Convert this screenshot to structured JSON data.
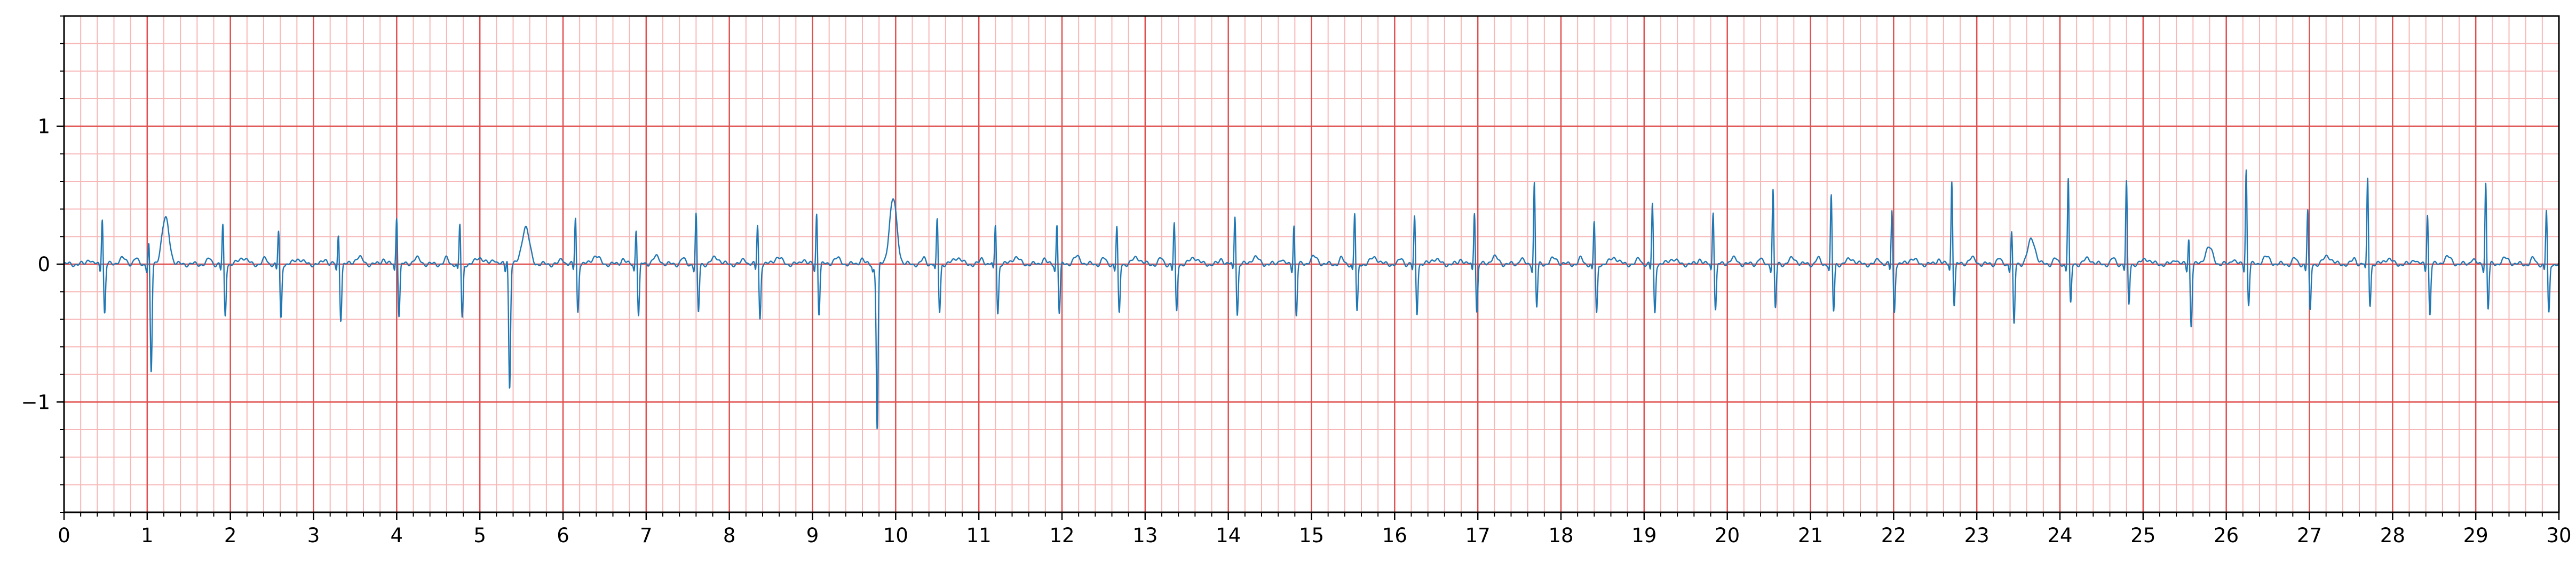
{
  "chart_data": {
    "type": "line",
    "title": "",
    "xlabel": "",
    "ylabel": "",
    "xlim": [
      0,
      30
    ],
    "ylim": [
      -1.8,
      1.8
    ],
    "grid": {
      "major_x": 1,
      "minor_x": 0.2,
      "major_y": 1,
      "minor_y": 0.2,
      "on": true
    },
    "x_ticks": [
      0,
      1,
      2,
      3,
      4,
      5,
      6,
      7,
      8,
      9,
      10,
      11,
      12,
      13,
      14,
      15,
      16,
      17,
      18,
      19,
      20,
      21,
      22,
      23,
      24,
      25,
      26,
      27,
      28,
      29,
      30
    ],
    "x_tick_labels": [
      "0",
      "1",
      "2",
      "3",
      "4",
      "5",
      "6",
      "7",
      "8",
      "9",
      "10",
      "11",
      "12",
      "13",
      "14",
      "15",
      "16",
      "17",
      "18",
      "19",
      "20",
      "21",
      "22",
      "23",
      "24",
      "25",
      "26",
      "27",
      "28",
      "29",
      "30"
    ],
    "y_ticks": [
      -1,
      0,
      1
    ],
    "y_tick_labels": [
      "−1",
      "0",
      "1"
    ],
    "series": [
      {
        "color": "#1f77b4",
        "beats": [
          {
            "t": 0.46,
            "r": 0.35,
            "s": -0.36,
            "tw": 0.04
          },
          {
            "t": 1.02,
            "r": 0.17,
            "s": -0.8,
            "tw": 0.33,
            "tt": 0.2
          },
          {
            "t": 1.91,
            "r": 0.29,
            "s": -0.38,
            "tw": 0.05
          },
          {
            "t": 2.58,
            "r": 0.25,
            "s": -0.4,
            "tw": 0.04
          },
          {
            "t": 3.3,
            "r": 0.22,
            "s": -0.4,
            "tw": 0.05
          },
          {
            "t": 4.0,
            "r": 0.36,
            "s": -0.38,
            "tw": 0.04
          },
          {
            "t": 4.76,
            "r": 0.3,
            "s": -0.4,
            "tw": 0.05
          },
          {
            "t": 5.33,
            "r": 0.05,
            "s": -0.9,
            "tw": 0.27,
            "tt": 0.22
          },
          {
            "t": 6.15,
            "r": 0.35,
            "s": -0.35,
            "tw": 0.06
          },
          {
            "t": 6.88,
            "r": 0.27,
            "s": -0.38,
            "tw": 0.05
          },
          {
            "t": 7.6,
            "r": 0.37,
            "s": -0.36,
            "tw": 0.05
          },
          {
            "t": 8.34,
            "r": 0.3,
            "s": -0.4,
            "tw": 0.05
          },
          {
            "t": 9.05,
            "r": 0.38,
            "s": -0.36,
            "tw": 0.04
          },
          {
            "t": 9.75,
            "r": -0.05,
            "s": -1.2,
            "tw": 0.47,
            "tt": 0.22
          },
          {
            "t": 10.5,
            "r": 0.33,
            "s": -0.35,
            "tw": 0.05
          },
          {
            "t": 11.2,
            "r": 0.3,
            "s": -0.36,
            "tw": 0.05
          },
          {
            "t": 11.94,
            "r": 0.3,
            "s": -0.36,
            "tw": 0.05
          },
          {
            "t": 12.66,
            "r": 0.28,
            "s": -0.37,
            "tw": 0.05
          },
          {
            "t": 13.35,
            "r": 0.3,
            "s": -0.35,
            "tw": 0.05
          },
          {
            "t": 14.08,
            "r": 0.37,
            "s": -0.37,
            "tw": 0.05
          },
          {
            "t": 14.79,
            "r": 0.3,
            "s": -0.38,
            "tw": 0.05
          },
          {
            "t": 15.52,
            "r": 0.38,
            "s": -0.36,
            "tw": 0.05
          },
          {
            "t": 16.24,
            "r": 0.35,
            "s": -0.36,
            "tw": 0.04
          },
          {
            "t": 16.96,
            "r": 0.4,
            "s": -0.35,
            "tw": 0.05
          },
          {
            "t": 17.68,
            "r": 0.6,
            "s": -0.32,
            "tw": 0.04
          },
          {
            "t": 18.4,
            "r": 0.32,
            "s": -0.37,
            "tw": 0.05
          },
          {
            "t": 19.1,
            "r": 0.45,
            "s": -0.36,
            "tw": 0.04
          },
          {
            "t": 19.83,
            "r": 0.4,
            "s": -0.33,
            "tw": 0.04
          },
          {
            "t": 20.55,
            "r": 0.55,
            "s": -0.33,
            "tw": 0.04
          },
          {
            "t": 21.25,
            "r": 0.5,
            "s": -0.35,
            "tw": 0.04
          },
          {
            "t": 21.98,
            "r": 0.4,
            "s": -0.35,
            "tw": 0.04
          },
          {
            "t": 22.7,
            "r": 0.62,
            "s": -0.3,
            "tw": 0.04
          },
          {
            "t": 23.42,
            "r": 0.25,
            "s": -0.45,
            "tw": 0.18
          },
          {
            "t": 24.1,
            "r": 0.63,
            "s": -0.3,
            "tw": 0.04
          },
          {
            "t": 24.8,
            "r": 0.6,
            "s": -0.3,
            "tw": 0.04
          },
          {
            "t": 25.55,
            "r": 0.2,
            "s": -0.45,
            "tw": 0.12
          },
          {
            "t": 26.24,
            "r": 0.7,
            "s": -0.3,
            "tw": 0.05
          },
          {
            "t": 26.98,
            "r": 0.4,
            "s": -0.35,
            "tw": 0.06
          },
          {
            "t": 27.7,
            "r": 0.63,
            "s": -0.3,
            "tw": 0.04
          },
          {
            "t": 28.42,
            "r": 0.38,
            "s": -0.37,
            "tw": 0.05
          },
          {
            "t": 29.12,
            "r": 0.6,
            "s": -0.33,
            "tw": 0.04
          },
          {
            "t": 29.85,
            "r": 0.4,
            "s": -0.37,
            "tw": 0.03
          }
        ]
      }
    ],
    "colors": {
      "major_grid": "#e05050",
      "minor_grid": "#f7b7b7",
      "axis": "#000000",
      "trace": "#1f77b4"
    }
  }
}
